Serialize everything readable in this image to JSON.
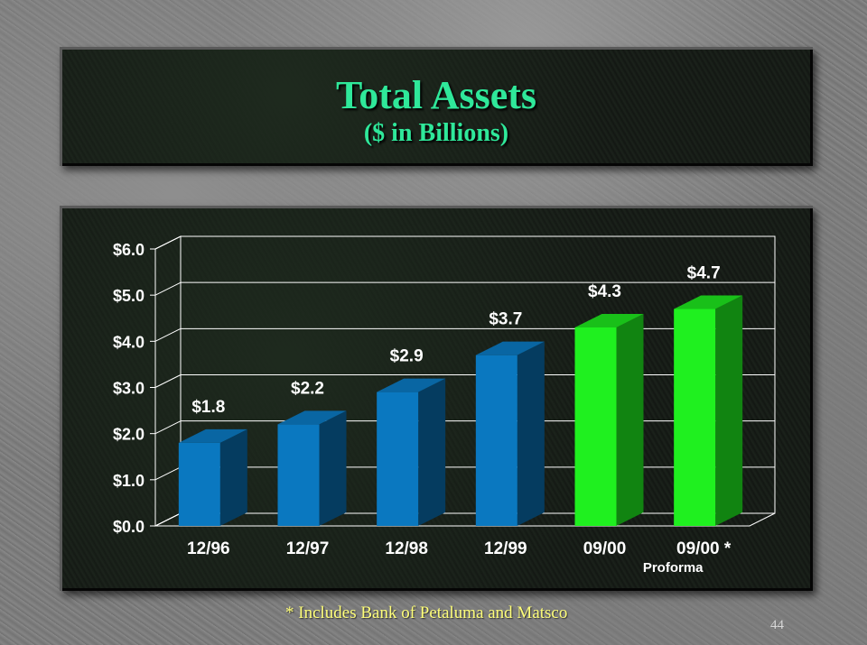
{
  "chart_data": {
    "type": "bar",
    "title": "Total Assets",
    "subtitle": "($ in Billions)",
    "categories": [
      "12/96",
      "12/97",
      "12/98",
      "12/99",
      "09/00",
      "09/00 *"
    ],
    "values": [
      1.8,
      2.2,
      2.9,
      3.7,
      4.3,
      4.7
    ],
    "data_labels": [
      "$1.8",
      "$2.2",
      "$2.9",
      "$3.7",
      "$4.3",
      "$4.7"
    ],
    "y_ticks": [
      0,
      1,
      2,
      3,
      4,
      5,
      6
    ],
    "y_tick_labels": [
      "$0.0",
      "$1.0",
      "$2.0",
      "$3.0",
      "$4.0",
      "$5.0",
      "$6.0"
    ],
    "ylim": [
      0,
      6
    ],
    "xlabel": "",
    "ylabel": "",
    "grid": true,
    "bar_colors": [
      "#0a78c0",
      "#0a78c0",
      "#0a78c0",
      "#0a78c0",
      "#1ff01f",
      "#1ff01f"
    ],
    "annotation": "Proforma"
  },
  "footnote": "* Includes Bank of Petaluma and Matsco",
  "page_number": "44",
  "colors": {
    "title": "#2fe89a",
    "footnote": "#ffff7a",
    "historical_bar": "#0a78c0",
    "current_bar": "#1ff01f"
  }
}
